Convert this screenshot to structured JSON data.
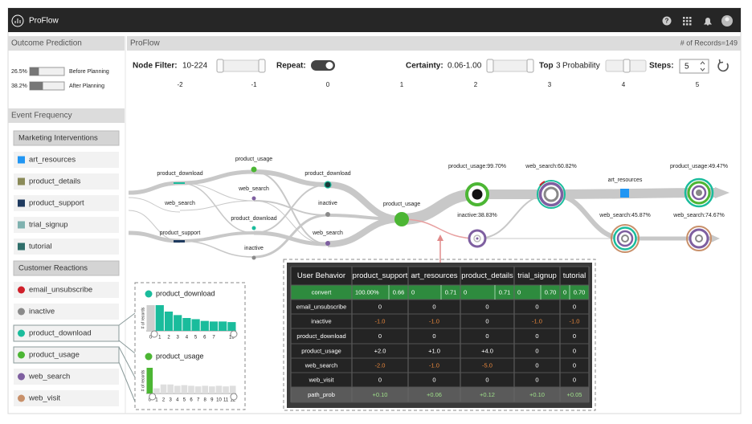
{
  "app": {
    "title": "ProFlow"
  },
  "outcome": {
    "title": "Outcome Prediction",
    "rows": [
      {
        "value": 26.5,
        "value_label": "26.5%",
        "label": "Before Planning"
      },
      {
        "value": 38.2,
        "value_label": "38.2%",
        "label": "After Planning"
      }
    ]
  },
  "frequency": {
    "title": "Event Frequency",
    "groups": [
      {
        "title": "Marketing Interventions",
        "shape": "square",
        "items": [
          {
            "name": "art_resources",
            "color": "#2196f3"
          },
          {
            "name": "product_details",
            "color": "#8a8a58"
          },
          {
            "name": "product_support",
            "color": "#1e3a5f"
          },
          {
            "name": "trial_signup",
            "color": "#7fb2b0"
          },
          {
            "name": "tutorial",
            "color": "#2f6e6a"
          }
        ]
      },
      {
        "title": "Customer Reactions",
        "shape": "circle",
        "items": [
          {
            "name": "email_unsubscribe",
            "color": "#d0202a"
          },
          {
            "name": "inactive",
            "color": "#8a8a8a"
          },
          {
            "name": "product_download",
            "color": "#1abc9c"
          },
          {
            "name": "product_usage",
            "color": "#4cb634"
          },
          {
            "name": "web_search",
            "color": "#7e5fa0"
          },
          {
            "name": "web_visit",
            "color": "#c8906a"
          }
        ]
      }
    ]
  },
  "histograms": [
    {
      "name": "product_download",
      "color": "#1abc9c",
      "axis_label": "# of records",
      "categories": [
        "0",
        "1",
        "2",
        "3",
        "4",
        "5",
        "6",
        "7",
        null,
        "13"
      ],
      "counts": [
        44,
        44,
        33,
        27,
        22,
        20,
        17,
        16,
        16,
        15
      ]
    },
    {
      "name": "product_usage",
      "color": "#4cb634",
      "axis_label": "# of records",
      "categories": [
        "0",
        "1",
        "2",
        "3",
        "4",
        "5",
        "6",
        "7",
        "8",
        "9",
        "10",
        "11",
        "12"
      ],
      "counts": [
        40,
        8,
        14,
        14,
        12,
        13,
        12,
        11,
        12,
        11,
        12,
        11,
        12
      ]
    }
  ],
  "main": {
    "title": "ProFlow",
    "records": "# of Records=149"
  },
  "controls": {
    "node_filter_label": "Node Filter:",
    "node_filter_value": "10-224",
    "repeat_label": "Repeat:",
    "certainty_label": "Certainty:",
    "certainty_value": "0.06-1.00",
    "top_label": "Top",
    "top_value": "3",
    "probability_label": "Probability",
    "steps_label": "Steps:",
    "steps_value": "5"
  },
  "steps": [
    "-2",
    "-1",
    "0",
    "1",
    "2",
    "3",
    "4",
    "5"
  ],
  "flow_nodes": [
    "product_download",
    "web_search",
    "product_support",
    "product_usage",
    "web_search",
    "product_download",
    "inactive",
    "product_download",
    "inactive",
    "web_search",
    "product_usage",
    "product_usage:99.70%",
    "inactive:38.83%",
    "web_search:60.82%",
    "art_resources",
    "web_search:45.87%",
    "product_usage:49.47%",
    "web_search:74.67%"
  ],
  "table": {
    "header": [
      "User Behavior",
      "product_support",
      "art_resources",
      "product_details",
      "trial_signup",
      "tutorial"
    ],
    "rows": [
      {
        "label": "convert",
        "cells": [
          [
            "100.00%",
            "0.66"
          ],
          [
            "0",
            "0.71"
          ],
          [
            "0",
            "0.71"
          ],
          [
            "0",
            "0.70"
          ],
          [
            "0",
            "0.70"
          ]
        ]
      },
      {
        "label": "email_unsubscribe",
        "cells": [
          "0",
          "0",
          "0",
          "0",
          "0"
        ]
      },
      {
        "label": "inactive",
        "cells": [
          "-1.0",
          "-1.0",
          "0",
          "-1.0",
          "-1.0"
        ]
      },
      {
        "label": "product_download",
        "cells": [
          "0",
          "0",
          "0",
          "0",
          "0"
        ]
      },
      {
        "label": "product_usage",
        "cells": [
          "+2.0",
          "+1.0",
          "+4.0",
          "0",
          "0"
        ]
      },
      {
        "label": "web_search",
        "cells": [
          "-2.0",
          "-1.0",
          "-5.0",
          "0",
          "0"
        ]
      },
      {
        "label": "web_visit",
        "cells": [
          "0",
          "0",
          "0",
          "0",
          "0"
        ]
      },
      {
        "label": "path_prob",
        "cells": [
          "+0.10",
          "+0.06",
          "+0.12",
          "+0.10",
          "+0.05"
        ]
      }
    ]
  }
}
